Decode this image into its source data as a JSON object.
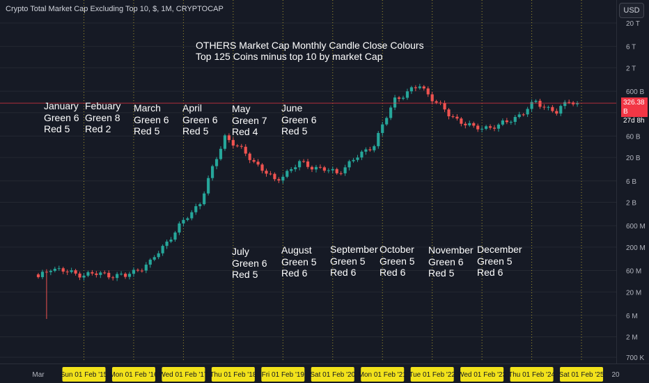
{
  "header": {
    "symbol_title": "Crypto Total Market Cap Excluding Top 10, $, 1M, CRYPTOCAP",
    "currency_button": "USD"
  },
  "annotation": {
    "line1": "OTHERS Market Cap Monthly Candle Close Colours",
    "line2": "Top 125 Coins minus top 10 by market Cap"
  },
  "months_top": [
    {
      "name": "January",
      "green": "Green 6",
      "red": "Red 5"
    },
    {
      "name": "Febuary",
      "green": "Green 8",
      "red": "Red 2"
    },
    {
      "name": "March",
      "green": "Green 6",
      "red": "Red 5"
    },
    {
      "name": "April",
      "green": "Green 6",
      "red": "Red 5"
    },
    {
      "name": "May",
      "green": "Green 7",
      "red": "Red 4"
    },
    {
      "name": "June",
      "green": "Green 6",
      "red": "Red 5"
    }
  ],
  "months_bottom": [
    {
      "name": "July",
      "green": "Green 6",
      "red": "Red 5"
    },
    {
      "name": "August",
      "green": "Green 5",
      "red": "Red 6"
    },
    {
      "name": "September",
      "green": "Green 5",
      "red": "Red 6"
    },
    {
      "name": "October",
      "green": "Green 5",
      "red": "Red 6"
    },
    {
      "name": "November",
      "green": "Green 6",
      "red": "Red 5"
    },
    {
      "name": "December",
      "green": "Green 5",
      "red": "Red 6"
    }
  ],
  "price_label": {
    "value": "326.38 B",
    "countdown": "27d 8h"
  },
  "colors": {
    "background": "#161a25",
    "up": "#26a69a",
    "down": "#ef5350",
    "grid": "#242832",
    "marker_line": "#c9b52f",
    "date_highlight": "#f2e21b",
    "price_tag": "#f23645"
  },
  "chart_data": {
    "type": "candlestick",
    "scale": "log",
    "y_axis_ticks": [
      "20 T",
      "6 T",
      "2 T",
      "600 B",
      "200 B",
      "60 B",
      "20 B",
      "6 B",
      "2 B",
      "600 M",
      "200 M",
      "60 M",
      "20 M",
      "6 M",
      "2 M",
      "700 K"
    ],
    "y_axis_tick_values": [
      20000000000000,
      6000000000000,
      2000000000000,
      600000000000,
      200000000000,
      60000000000,
      20000000000,
      6000000000,
      2000000000,
      600000000,
      200000000,
      60000000,
      20000000,
      6000000,
      2000000,
      700000
    ],
    "x_axis_labels": [
      "Mar",
      "Sun 01 Feb '15",
      "Mon 01 Feb '16",
      "Wed 01 Feb '17",
      "Thu 01 Feb '18",
      "Fri 01 Feb '19",
      "Sat 01 Feb '20",
      "Mon 01 Feb '21",
      "Tue 01 Feb '22",
      "Wed 01 Feb '23",
      "Thu 01 Feb '24",
      "Sat 01 Feb '25",
      "20"
    ],
    "highlighted_dates": [
      "Sun 01 Feb '15",
      "Mon 01 Feb '16",
      "Wed 01 Feb '17",
      "Thu 01 Feb '18",
      "Fri 01 Feb '19",
      "Sat 01 Feb '20",
      "Mon 01 Feb '21",
      "Tue 01 Feb '22",
      "Wed 01 Feb '23",
      "Thu 01 Feb '24",
      "Sat 01 Feb '25"
    ],
    "last_price": "326.38 B",
    "anchors": [
      {
        "date": "2014-03",
        "close": 40000000
      },
      {
        "date": "2014-06",
        "close": 70000000
      },
      {
        "date": "2014-12",
        "close": 50000000
      },
      {
        "date": "2015-06",
        "close": 50000000
      },
      {
        "date": "2015-12",
        "close": 45000000
      },
      {
        "date": "2016-06",
        "close": 90000000
      },
      {
        "date": "2016-12",
        "close": 450000000
      },
      {
        "date": "2017-06",
        "close": 2000000000
      },
      {
        "date": "2017-12",
        "close": 60000000000
      },
      {
        "date": "2018-06",
        "close": 20000000000
      },
      {
        "date": "2018-12",
        "close": 6000000000
      },
      {
        "date": "2019-06",
        "close": 15000000000
      },
      {
        "date": "2020-03",
        "close": 9000000000
      },
      {
        "date": "2020-12",
        "close": 40000000000
      },
      {
        "date": "2021-05",
        "close": 400000000000
      },
      {
        "date": "2021-11",
        "close": 800000000000
      },
      {
        "date": "2022-06",
        "close": 180000000000
      },
      {
        "date": "2022-12",
        "close": 90000000000
      },
      {
        "date": "2023-06",
        "close": 100000000000
      },
      {
        "date": "2023-12",
        "close": 200000000000
      },
      {
        "date": "2024-03",
        "close": 350000000000
      },
      {
        "date": "2024-08",
        "close": 200000000000
      },
      {
        "date": "2024-11",
        "close": 380000000000
      },
      {
        "date": "2025-01",
        "close": 326380000000
      }
    ]
  }
}
